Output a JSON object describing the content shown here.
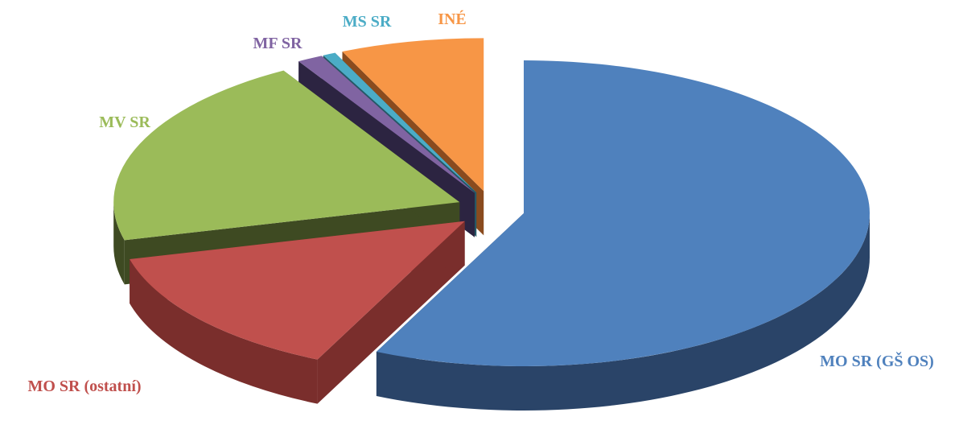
{
  "chart_data": {
    "type": "pie",
    "title": "",
    "slices": [
      {
        "label": "MO SR (GŠ OS)",
        "value": 57.0,
        "color": "#4F81BD",
        "side": "#2A4468"
      },
      {
        "label": "MO SR (ostatní)",
        "value": 14.0,
        "color": "#C0504D",
        "side": "#7A2E2C"
      },
      {
        "label": "MV SR",
        "value": 20.5,
        "color": "#9BBB59",
        "side": "#3E4A22"
      },
      {
        "label": "MF SR",
        "value": 1.2,
        "color": "#8064A2",
        "side": "#2C2441"
      },
      {
        "label": "MS SR",
        "value": 0.6,
        "color": "#4BACC6",
        "side": "#245866"
      },
      {
        "label": "INÉ",
        "value": 6.7,
        "color": "#F79646",
        "side": "#8A4B1E"
      }
    ],
    "legend": "none",
    "exploded": true
  }
}
